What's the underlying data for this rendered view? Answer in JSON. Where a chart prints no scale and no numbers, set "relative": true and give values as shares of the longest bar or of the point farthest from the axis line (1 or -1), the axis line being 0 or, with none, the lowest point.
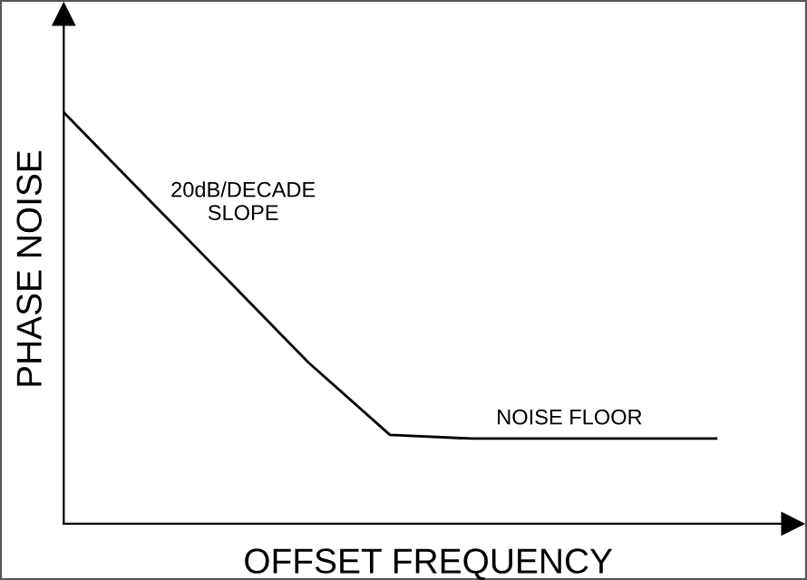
{
  "chart_data": {
    "type": "line",
    "relative": true,
    "xlabel": "OFFSET FREQUENCY",
    "ylabel": "PHASE NOISE",
    "categories": [
      null,
      null,
      null,
      null,
      null,
      null,
      null,
      null,
      null
    ],
    "series": [
      {
        "color": "#000000",
        "values": [
          1,
          0.797,
          0.595,
          0.392,
          0.216,
          0.207,
          0.207,
          0.207,
          0.207
        ]
      }
    ],
    "annotations": [
      "20dB/DECADE\nSLOPE",
      "NOISE FLOOR"
    ],
    "grid": false,
    "marker": "none",
    "line_style": "solid"
  }
}
